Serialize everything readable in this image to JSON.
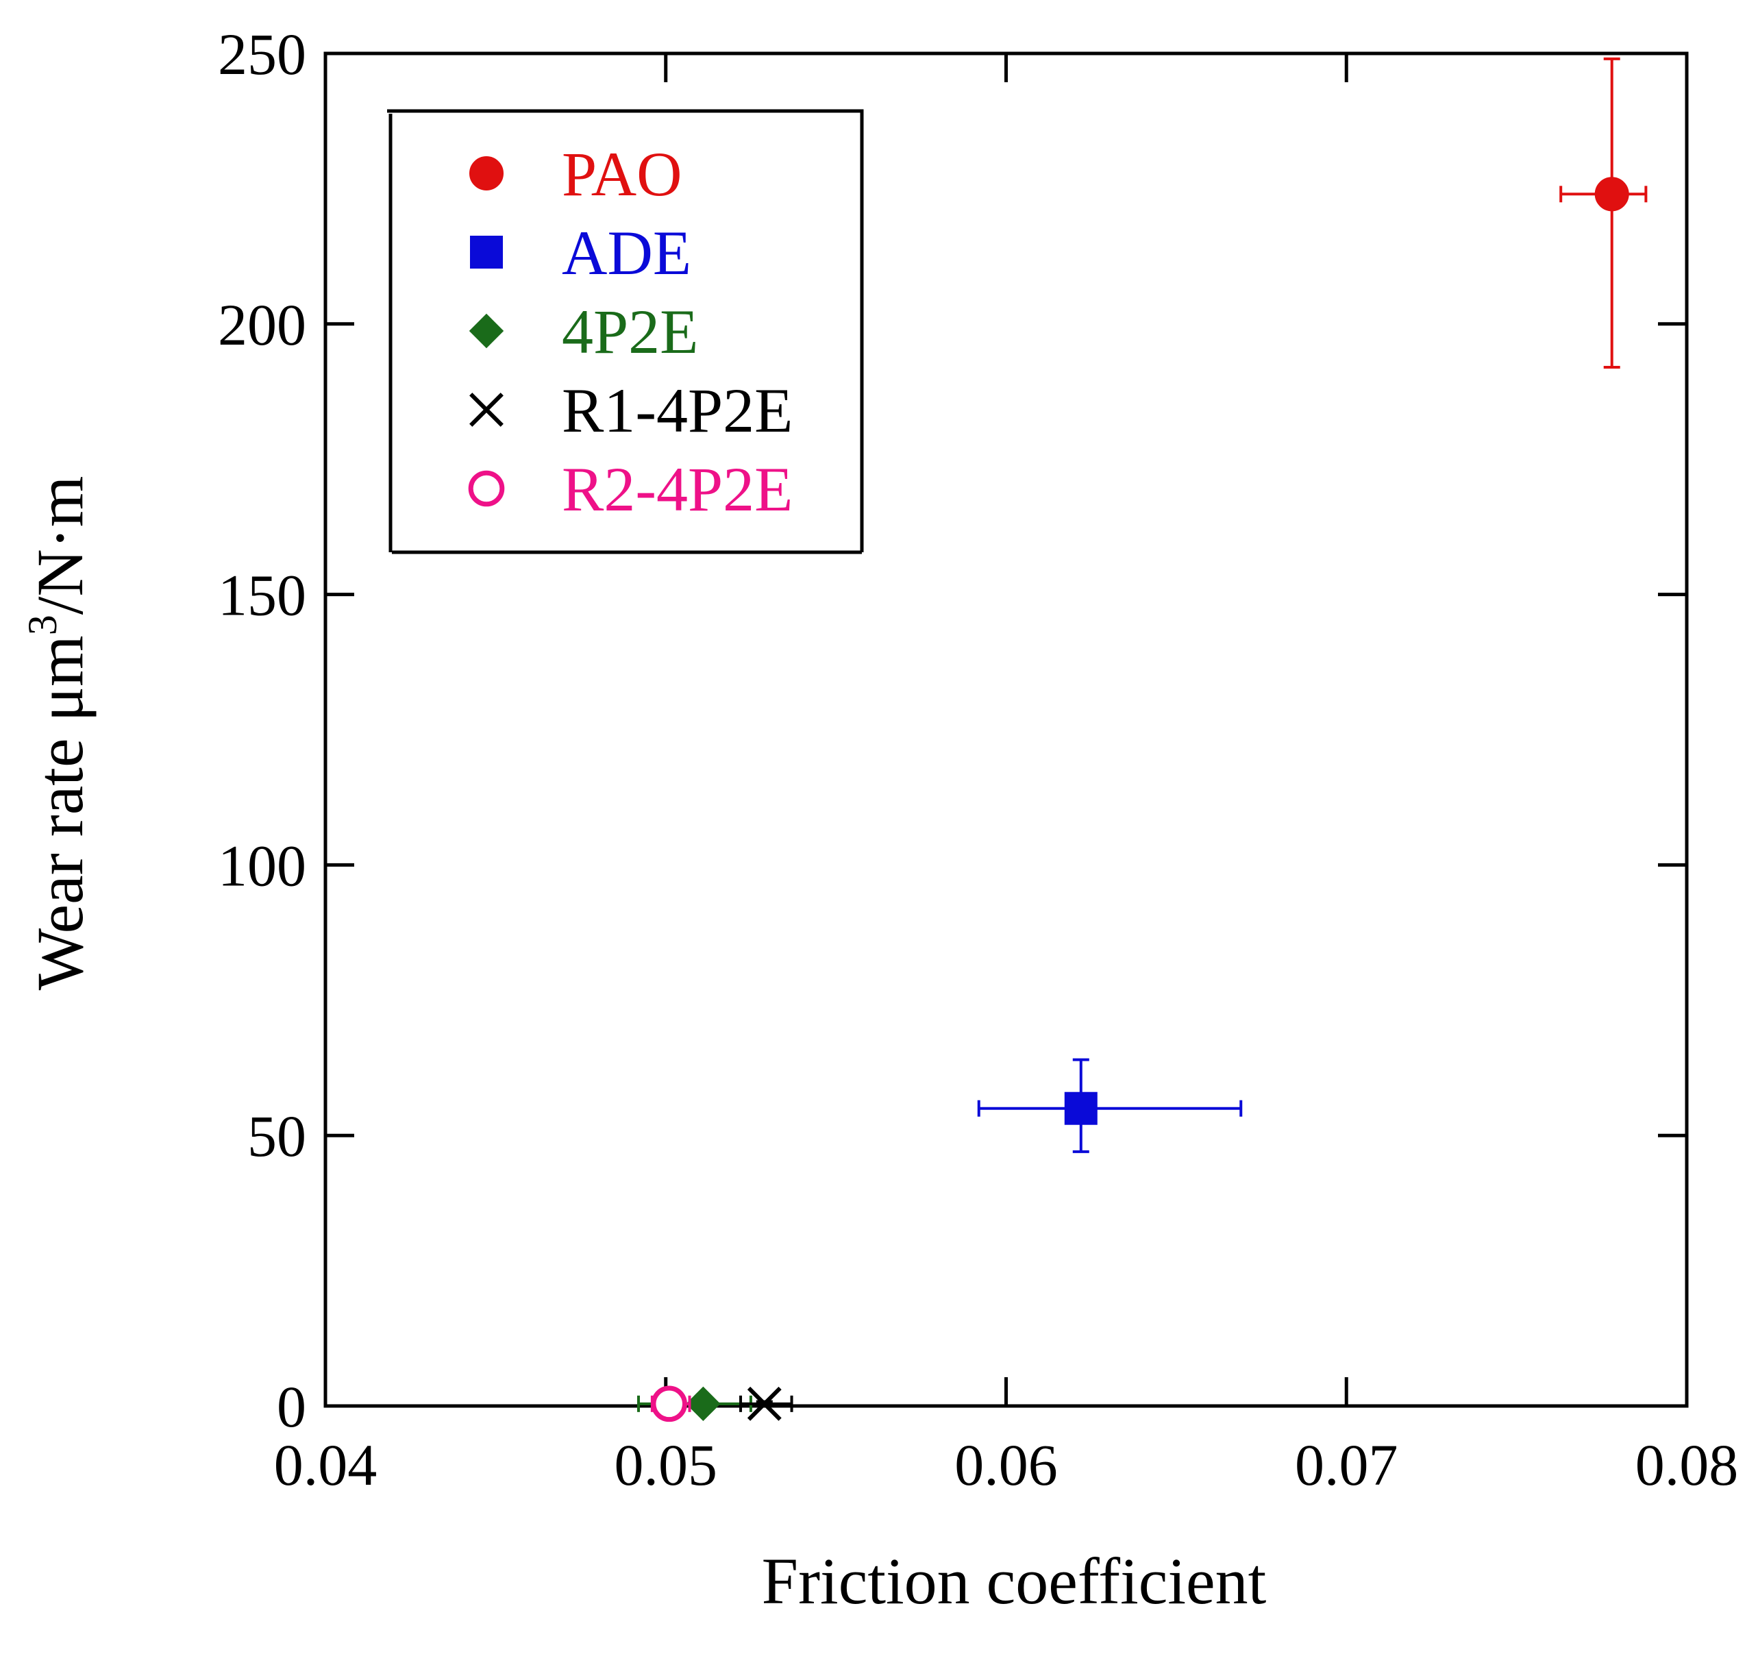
{
  "chart_data": {
    "type": "scatter",
    "title": "",
    "xlabel": "Friction coefficient",
    "ylabel": "Wear rate μm³/N·m",
    "ylabel_parts": {
      "main": "Wear rate μm",
      "superscript": "3",
      "tail": "/N·m"
    },
    "xlim": [
      0.04,
      0.08
    ],
    "ylim": [
      0,
      250
    ],
    "x_ticks": [
      0.04,
      0.05,
      0.06,
      0.07,
      0.08
    ],
    "x_tick_labels": [
      "0.04",
      "0.05",
      "0.06",
      "0.07",
      "0.08"
    ],
    "y_ticks": [
      0,
      50,
      100,
      150,
      200,
      250
    ],
    "y_tick_labels": [
      "0",
      "50",
      "100",
      "150",
      "200",
      "250"
    ],
    "grid": false,
    "legend_position": "top-left",
    "series": [
      {
        "name": "PAO",
        "marker": "circle-filled",
        "color": "#e01010",
        "x": 0.0778,
        "y": 224,
        "x_err": [
          0.0763,
          0.0788
        ],
        "y_err": [
          192,
          249
        ]
      },
      {
        "name": "ADE",
        "marker": "square-filled",
        "color": "#0a0ad8",
        "x": 0.0622,
        "y": 55,
        "x_err": [
          0.0592,
          0.0669
        ],
        "y_err": [
          47,
          64
        ]
      },
      {
        "name": "4P2E",
        "marker": "diamond-filled",
        "color": "#1a6b1a",
        "x": 0.0511,
        "y": 0.4,
        "x_err": [
          0.0492,
          0.0525
        ],
        "y_err": [
          0,
          0.8
        ]
      },
      {
        "name": "R1-4P2E",
        "marker": "x",
        "color": "#000000",
        "x": 0.0529,
        "y": 0.4,
        "x_err": [
          0.0522,
          0.0537
        ],
        "y_err": [
          0,
          0.8
        ]
      },
      {
        "name": "R2-4P2E",
        "marker": "circle-open",
        "color": "#ee1188",
        "x": 0.0501,
        "y": 0.4,
        "x_err": [
          0.0496,
          0.0507
        ],
        "y_err": [
          0,
          0.8
        ]
      }
    ]
  }
}
